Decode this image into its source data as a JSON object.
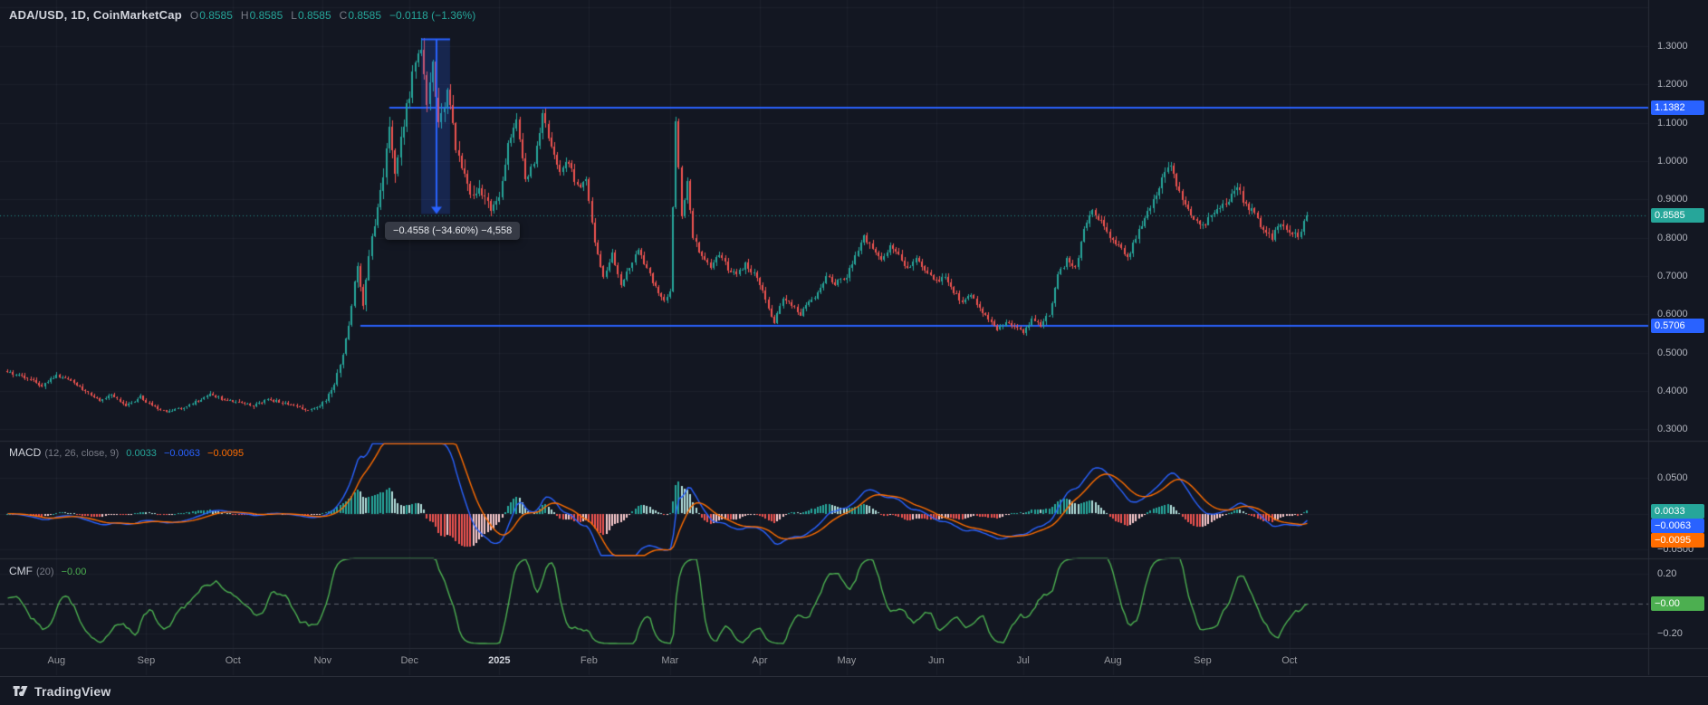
{
  "header": {
    "title": "ADA/USD, 1D, CoinMarketCap",
    "o_label": "O",
    "o": "0.8585",
    "h_label": "H",
    "h": "0.8585",
    "l_label": "L",
    "l": "0.8585",
    "c_label": "C",
    "c": "0.8585",
    "change": "−0.0118 (−1.36%)"
  },
  "macd": {
    "title": "MACD",
    "params": "(12, 26, close, 9)",
    "hist": "0.0033",
    "macd": "−0.0063",
    "signal": "−0.0095"
  },
  "cmf": {
    "title": "CMF",
    "params": "(20)",
    "value": "−0.00"
  },
  "axis": {
    "price_ticks": [
      "1.3000",
      "1.2000",
      "1.1000",
      "1.0000",
      "0.9000",
      "0.8000",
      "0.7000",
      "0.6000",
      "0.5000",
      "0.4000",
      "0.3000"
    ],
    "macd_ticks": [
      "0.0500",
      "0.0000",
      "−0.0500"
    ],
    "cmf_ticks": [
      "0.20",
      "−0.20"
    ],
    "time_ticks": [
      "Aug",
      "Sep",
      "Oct",
      "Nov",
      "Dec",
      "2025",
      "Feb",
      "Mar",
      "Apr",
      "May",
      "Jun",
      "Jul",
      "Aug",
      "Sep",
      "Oct"
    ]
  },
  "tags": {
    "resistance": "1.1382",
    "support": "0.5706",
    "last": "0.8585",
    "macd_hist": "0.0033",
    "macd_line": "−0.0063",
    "macd_signal": "−0.0095",
    "cmf": "−0.00"
  },
  "measure": {
    "label": "−0.4558 (−34.60%) −4,558"
  },
  "logo": {
    "text": "TradingView"
  },
  "colors": {
    "bg": "#131722",
    "up": "#26a69a",
    "down": "#ef5350",
    "ray": "#2962ff",
    "measure_fill": "rgba(41,98,255,0.2)",
    "macd_line": "#2962ff",
    "macd_signal": "#ff6d00",
    "hist_up_grow": "#26a69a",
    "hist_up_fall": "#b2dfdb",
    "hist_dn_grow": "#ef5350",
    "hist_dn_fall": "#fccbcd",
    "cmf_line": "#4caf50",
    "axis_text": "#b2b5be"
  },
  "chart_data": {
    "type": "candlestick",
    "symbol": "ADA/USD",
    "interval": "1D",
    "source": "CoinMarketCap",
    "price_axis_range": [
      0.27,
      1.42
    ],
    "total_days": 450,
    "month_tick_days": [
      17,
      48,
      78,
      109,
      139,
      170,
      201,
      229,
      260,
      290,
      321,
      351,
      382,
      413,
      443
    ],
    "levels": {
      "resistance": 1.1382,
      "support": 0.5706,
      "last_close": 0.8585
    },
    "ray_starts": {
      "resistance_day": 132,
      "support_day": 122
    },
    "measure_tool": {
      "day_from": 143,
      "day_to": 153,
      "price_from": 1.3174,
      "price_to": 0.8616,
      "change": -0.4558,
      "percent": -34.6
    },
    "macd_settings": [
      12,
      26,
      9
    ],
    "macd_last": {
      "hist": 0.0033,
      "macd": -0.0063,
      "signal": -0.0095
    },
    "cmf_period": 20,
    "cmf_last": -0.003,
    "indicator_ranges": {
      "macd": [
        -0.062,
        0.1
      ],
      "cmf": [
        -0.3,
        0.3
      ]
    },
    "price_anchors": [
      [
        0,
        0.45
      ],
      [
        6,
        0.437
      ],
      [
        12,
        0.415
      ],
      [
        17,
        0.44
      ],
      [
        22,
        0.425
      ],
      [
        27,
        0.4
      ],
      [
        32,
        0.372
      ],
      [
        36,
        0.39
      ],
      [
        41,
        0.36
      ],
      [
        46,
        0.385
      ],
      [
        50,
        0.36
      ],
      [
        55,
        0.345
      ],
      [
        60,
        0.355
      ],
      [
        65,
        0.372
      ],
      [
        70,
        0.392
      ],
      [
        75,
        0.378
      ],
      [
        80,
        0.372
      ],
      [
        85,
        0.36
      ],
      [
        90,
        0.378
      ],
      [
        95,
        0.37
      ],
      [
        100,
        0.358
      ],
      [
        105,
        0.35
      ],
      [
        108,
        0.36
      ],
      [
        112,
        0.4
      ],
      [
        115,
        0.46
      ],
      [
        118,
        0.57
      ],
      [
        121,
        0.73
      ],
      [
        123,
        0.62
      ],
      [
        126,
        0.8
      ],
      [
        129,
        0.92
      ],
      [
        132,
        1.08
      ],
      [
        134,
        0.97
      ],
      [
        137,
        1.1
      ],
      [
        140,
        1.22
      ],
      [
        143,
        1.31
      ],
      [
        145,
        1.13
      ],
      [
        147,
        1.24
      ],
      [
        149,
        1.09
      ],
      [
        152,
        1.17
      ],
      [
        155,
        1.04
      ],
      [
        158,
        0.95
      ],
      [
        161,
        0.9
      ],
      [
        164,
        0.925
      ],
      [
        167,
        0.88
      ],
      [
        170,
        0.905
      ],
      [
        173,
        1.04
      ],
      [
        176,
        1.1
      ],
      [
        179,
        0.95
      ],
      [
        182,
        1.0
      ],
      [
        185,
        1.12
      ],
      [
        188,
        1.04
      ],
      [
        191,
        0.975
      ],
      [
        194,
        1.0
      ],
      [
        197,
        0.93
      ],
      [
        200,
        0.95
      ],
      [
        203,
        0.79
      ],
      [
        206,
        0.7
      ],
      [
        209,
        0.755
      ],
      [
        212,
        0.68
      ],
      [
        215,
        0.725
      ],
      [
        218,
        0.77
      ],
      [
        221,
        0.72
      ],
      [
        224,
        0.67
      ],
      [
        227,
        0.635
      ],
      [
        229,
        0.655
      ],
      [
        231,
        1.1
      ],
      [
        233,
        0.86
      ],
      [
        235,
        0.95
      ],
      [
        237,
        0.8
      ],
      [
        240,
        0.75
      ],
      [
        243,
        0.72
      ],
      [
        246,
        0.755
      ],
      [
        249,
        0.72
      ],
      [
        252,
        0.7
      ],
      [
        255,
        0.73
      ],
      [
        258,
        0.705
      ],
      [
        260,
        0.68
      ],
      [
        263,
        0.615
      ],
      [
        265,
        0.575
      ],
      [
        268,
        0.645
      ],
      [
        271,
        0.625
      ],
      [
        274,
        0.6
      ],
      [
        277,
        0.63
      ],
      [
        280,
        0.655
      ],
      [
        283,
        0.7
      ],
      [
        286,
        0.68
      ],
      [
        290,
        0.7
      ],
      [
        293,
        0.75
      ],
      [
        296,
        0.8
      ],
      [
        299,
        0.775
      ],
      [
        302,
        0.74
      ],
      [
        305,
        0.78
      ],
      [
        308,
        0.755
      ],
      [
        311,
        0.72
      ],
      [
        314,
        0.75
      ],
      [
        317,
        0.71
      ],
      [
        321,
        0.685
      ],
      [
        324,
        0.7
      ],
      [
        327,
        0.66
      ],
      [
        330,
        0.63
      ],
      [
        333,
        0.65
      ],
      [
        336,
        0.62
      ],
      [
        339,
        0.585
      ],
      [
        342,
        0.56
      ],
      [
        345,
        0.582
      ],
      [
        348,
        0.57
      ],
      [
        351,
        0.555
      ],
      [
        354,
        0.585
      ],
      [
        357,
        0.572
      ],
      [
        360,
        0.6
      ],
      [
        363,
        0.7
      ],
      [
        366,
        0.74
      ],
      [
        369,
        0.72
      ],
      [
        372,
        0.82
      ],
      [
        375,
        0.875
      ],
      [
        378,
        0.84
      ],
      [
        381,
        0.8
      ],
      [
        384,
        0.78
      ],
      [
        387,
        0.745
      ],
      [
        390,
        0.8
      ],
      [
        393,
        0.85
      ],
      [
        396,
        0.9
      ],
      [
        399,
        0.95
      ],
      [
        402,
        0.995
      ],
      [
        404,
        0.93
      ],
      [
        407,
        0.885
      ],
      [
        410,
        0.85
      ],
      [
        413,
        0.83
      ],
      [
        416,
        0.862
      ],
      [
        419,
        0.88
      ],
      [
        422,
        0.9
      ],
      [
        425,
        0.93
      ],
      [
        428,
        0.885
      ],
      [
        431,
        0.862
      ],
      [
        434,
        0.82
      ],
      [
        437,
        0.8
      ],
      [
        440,
        0.842
      ],
      [
        443,
        0.82
      ],
      [
        446,
        0.8
      ],
      [
        449,
        0.8585
      ]
    ]
  }
}
